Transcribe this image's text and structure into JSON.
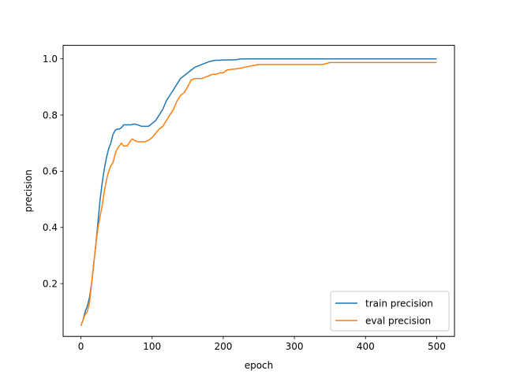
{
  "chart_data": {
    "type": "line",
    "title": "",
    "xlabel": "epoch",
    "ylabel": "precision",
    "xlim": [
      -25,
      525
    ],
    "ylim": [
      0.012,
      1.048
    ],
    "xticks": [
      0,
      100,
      200,
      300,
      400,
      500
    ],
    "yticks": [
      0.2,
      0.4,
      0.6,
      0.8,
      1.0
    ],
    "xtick_labels": [
      "0",
      "100",
      "200",
      "300",
      "400",
      "500"
    ],
    "ytick_labels": [
      "0.2",
      "0.4",
      "0.6",
      "0.8",
      "1.0"
    ],
    "grid": false,
    "legend_position": "lower-right",
    "series": [
      {
        "name": "train precision",
        "color": "#1f77b4",
        "x": [
          0,
          3,
          6,
          9,
          12,
          15,
          18,
          21,
          24,
          27,
          30,
          33,
          36,
          39,
          42,
          45,
          48,
          51,
          54,
          57,
          60,
          65,
          70,
          75,
          80,
          85,
          90,
          95,
          100,
          105,
          110,
          115,
          120,
          125,
          130,
          135,
          140,
          145,
          150,
          155,
          160,
          165,
          170,
          175,
          180,
          185,
          190,
          195,
          200,
          210,
          220,
          221,
          230,
          240,
          250,
          300,
          350,
          400,
          450,
          500
        ],
        "y": [
          0.05,
          0.07,
          0.1,
          0.12,
          0.15,
          0.2,
          0.27,
          0.34,
          0.42,
          0.5,
          0.56,
          0.61,
          0.65,
          0.68,
          0.7,
          0.73,
          0.745,
          0.75,
          0.75,
          0.755,
          0.765,
          0.765,
          0.765,
          0.768,
          0.765,
          0.76,
          0.76,
          0.76,
          0.77,
          0.78,
          0.8,
          0.82,
          0.85,
          0.87,
          0.89,
          0.91,
          0.93,
          0.94,
          0.95,
          0.96,
          0.97,
          0.975,
          0.98,
          0.985,
          0.99,
          0.993,
          0.995,
          0.995,
          0.996,
          0.996,
          0.997,
          0.999,
          1.0,
          1.0,
          1.0,
          1.0,
          1.0,
          1.0,
          1.0,
          1.0
        ]
      },
      {
        "name": "eval precision",
        "color": "#ff7f0e",
        "x": [
          0,
          3,
          6,
          9,
          12,
          15,
          18,
          21,
          24,
          27,
          30,
          33,
          36,
          39,
          42,
          45,
          48,
          51,
          54,
          57,
          60,
          62,
          65,
          70,
          72,
          75,
          80,
          85,
          90,
          95,
          100,
          105,
          110,
          115,
          120,
          125,
          130,
          135,
          140,
          145,
          150,
          155,
          160,
          165,
          170,
          175,
          180,
          185,
          190,
          195,
          200,
          205,
          210,
          220,
          230,
          240,
          250,
          300,
          340,
          350,
          400,
          450,
          500
        ],
        "y": [
          0.05,
          0.07,
          0.09,
          0.1,
          0.13,
          0.2,
          0.27,
          0.34,
          0.4,
          0.44,
          0.48,
          0.53,
          0.57,
          0.6,
          0.62,
          0.63,
          0.66,
          0.68,
          0.69,
          0.7,
          0.69,
          0.69,
          0.69,
          0.71,
          0.715,
          0.71,
          0.705,
          0.705,
          0.705,
          0.71,
          0.72,
          0.735,
          0.75,
          0.76,
          0.78,
          0.8,
          0.82,
          0.85,
          0.87,
          0.88,
          0.9,
          0.925,
          0.93,
          0.93,
          0.93,
          0.935,
          0.94,
          0.945,
          0.945,
          0.95,
          0.95,
          0.96,
          0.962,
          0.965,
          0.97,
          0.975,
          0.98,
          0.98,
          0.98,
          0.987,
          0.987,
          0.987,
          0.987
        ]
      }
    ]
  }
}
